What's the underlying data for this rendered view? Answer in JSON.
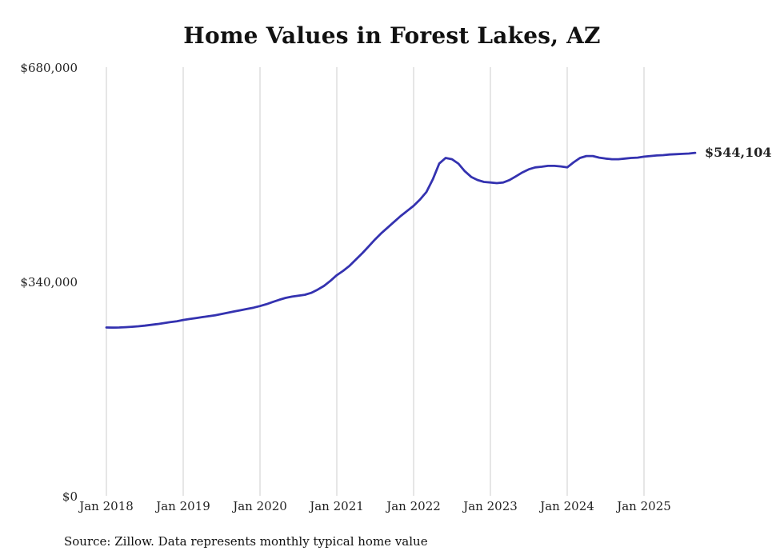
{
  "style": {
    "line_color": "#3432b0",
    "grid_color": "#cccccc",
    "text_color": "#222222",
    "background": "#ffffff"
  },
  "chart_data": {
    "type": "line",
    "title": "Home Values in Forest Lakes, AZ",
    "source": "Source: Zillow. Data represents monthly typical home value",
    "annotation": "$544,104",
    "xlabel": "",
    "ylabel": "",
    "ylim": [
      0,
      680000
    ],
    "grid": "vertical-yearly",
    "legend": "none",
    "x_start": "2018-01",
    "x_end": "2025-09",
    "frequency": "monthly",
    "x_ticks": [
      "Jan 2018",
      "Jan 2019",
      "Jan 2020",
      "Jan 2021",
      "Jan 2022",
      "Jan 2023",
      "Jan 2024",
      "Jan 2025"
    ],
    "y_ticks": [
      {
        "label": "$0",
        "value": 0
      },
      {
        "label": "$340,000",
        "value": 340000
      },
      {
        "label": "$680,000",
        "value": 680000
      }
    ],
    "series": [
      {
        "name": "Typical home value",
        "values": [
          267000,
          266800,
          267000,
          267500,
          268200,
          269000,
          270000,
          271200,
          272500,
          274000,
          275500,
          277000,
          279000,
          280500,
          282000,
          283500,
          285000,
          286500,
          288500,
          290500,
          292500,
          294500,
          296500,
          298500,
          301000,
          304000,
          307500,
          311000,
          314000,
          316000,
          317500,
          319000,
          322000,
          327000,
          333000,
          341000,
          350000,
          357000,
          365000,
          375000,
          385000,
          396000,
          407000,
          417000,
          426000,
          435000,
          444000,
          452000,
          460000,
          470000,
          482000,
          502000,
          527000,
          536000,
          534000,
          527000,
          515000,
          506000,
          501000,
          498000,
          497000,
          496000,
          497000,
          501000,
          507000,
          513000,
          518000,
          521000,
          522000,
          523500,
          523500,
          522500,
          521000,
          529000,
          536000,
          539000,
          539000,
          536500,
          535000,
          534000,
          534000,
          535000,
          536000,
          536500,
          538000,
          539000,
          540000,
          540500,
          541500,
          542000,
          542500,
          543000,
          544104
        ]
      }
    ]
  }
}
